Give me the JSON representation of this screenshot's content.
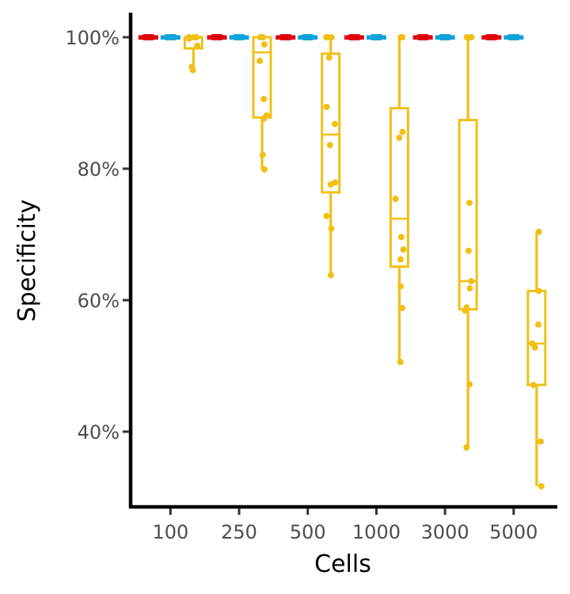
{
  "chart_data": {
    "type": "boxplot",
    "xlabel": "Cells",
    "ylabel": "Specificity",
    "categories": [
      "100",
      "250",
      "500",
      "1000",
      "3000",
      "5000"
    ],
    "ylim": [
      28,
      104
    ],
    "yticks": [
      40,
      60,
      80,
      100
    ],
    "ytick_labels": [
      "40%",
      "60%",
      "80%",
      "100%"
    ],
    "grid": false,
    "legend": "none",
    "series": [
      {
        "color": "#E0000F",
        "boxes": [
          {
            "min": 100,
            "q1": 100,
            "median": 100,
            "q3": 100,
            "max": 100
          },
          {
            "min": 100,
            "q1": 100,
            "median": 100,
            "q3": 100,
            "max": 100
          },
          {
            "min": 100,
            "q1": 100,
            "median": 100,
            "q3": 100,
            "max": 100
          },
          {
            "min": 100,
            "q1": 100,
            "median": 100,
            "q3": 100,
            "max": 100
          },
          {
            "min": 100,
            "q1": 100,
            "median": 100,
            "q3": 100,
            "max": 100
          },
          {
            "min": 100,
            "q1": 100,
            "median": 100,
            "q3": 100,
            "max": 100
          }
        ],
        "points": [
          [
            100,
            100,
            100,
            100,
            100
          ],
          [
            100,
            100,
            100,
            100,
            100
          ],
          [
            100,
            100,
            100,
            100,
            100
          ],
          [
            100,
            100,
            100,
            100,
            100
          ],
          [
            100,
            100,
            100,
            100,
            100
          ],
          [
            100,
            100,
            100,
            100,
            100
          ]
        ]
      },
      {
        "color": "#0FA3D9",
        "boxes": [
          {
            "min": 100,
            "q1": 100,
            "median": 100,
            "q3": 100,
            "max": 100
          },
          {
            "min": 100,
            "q1": 100,
            "median": 100,
            "q3": 100,
            "max": 100
          },
          {
            "min": 100,
            "q1": 100,
            "median": 100,
            "q3": 100,
            "max": 100
          },
          {
            "min": 100,
            "q1": 100,
            "median": 100,
            "q3": 100,
            "max": 100
          },
          {
            "min": 100,
            "q1": 100,
            "median": 100,
            "q3": 100,
            "max": 100
          },
          {
            "min": 100,
            "q1": 100,
            "median": 100,
            "q3": 100,
            "max": 100
          }
        ],
        "points": [
          [
            100,
            100,
            100,
            100,
            100
          ],
          [
            100,
            100,
            100,
            100,
            100
          ],
          [
            100,
            100,
            100,
            100,
            100
          ],
          [
            100,
            100,
            100,
            100,
            100
          ],
          [
            100,
            100,
            100,
            100,
            100
          ],
          [
            100,
            100,
            100,
            100,
            100
          ]
        ]
      },
      {
        "color": "#F0C016",
        "boxes": [
          {
            "min": 95,
            "q1": 98.3,
            "median": 99.9,
            "q3": 100,
            "max": 100
          },
          {
            "min": 79.9,
            "q1": 87.8,
            "median": 97.7,
            "q3": 100,
            "max": 100
          },
          {
            "min": 63.8,
            "q1": 76.4,
            "median": 85.2,
            "q3": 97.5,
            "max": 100
          },
          {
            "min": 50.6,
            "q1": 65.1,
            "median": 72.4,
            "q3": 89.2,
            "max": 100
          },
          {
            "min": 37.6,
            "q1": 58.6,
            "median": 62.9,
            "q3": 87.4,
            "max": 100
          },
          {
            "min": 31.7,
            "q1": 47.1,
            "median": 53.4,
            "q3": 61.4,
            "max": 70.4
          }
        ],
        "points": [
          [
            95.0,
            95.5,
            98.7,
            99.8,
            100,
            100,
            100
          ],
          [
            79.9,
            82.1,
            87.6,
            88.1,
            90.6,
            96.4,
            98.9,
            100,
            100
          ],
          [
            63.8,
            70.9,
            72.8,
            77.6,
            77.9,
            83.6,
            86.8,
            89.4,
            96.9,
            100,
            100,
            100
          ],
          [
            50.6,
            58.8,
            62.1,
            66.2,
            67.7,
            69.6,
            75.4,
            84.7,
            85.6,
            100,
            100
          ],
          [
            37.6,
            47.2,
            58.4,
            58.9,
            61.8,
            62.9,
            67.5,
            74.8,
            100,
            100,
            100
          ],
          [
            31.7,
            38.5,
            47.1,
            52.8,
            53.4,
            56.3,
            61.4,
            70.4
          ]
        ]
      }
    ]
  }
}
